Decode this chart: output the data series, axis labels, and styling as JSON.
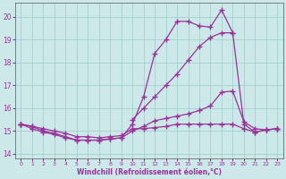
{
  "x": [
    0,
    1,
    2,
    3,
    4,
    5,
    6,
    7,
    8,
    9,
    10,
    11,
    12,
    13,
    14,
    15,
    16,
    17,
    18,
    19,
    20,
    21,
    22,
    23
  ],
  "line1": [
    15.3,
    15.2,
    15.1,
    15.0,
    14.9,
    14.75,
    14.75,
    14.7,
    14.75,
    14.8,
    15.1,
    15.1,
    15.15,
    15.2,
    15.3,
    15.3,
    15.3,
    15.3,
    15.3,
    15.3,
    15.1,
    14.95,
    15.05,
    15.1
  ],
  "line2": [
    15.3,
    15.2,
    15.0,
    14.9,
    14.75,
    14.6,
    14.6,
    14.6,
    14.65,
    14.7,
    15.3,
    16.5,
    18.4,
    19.0,
    19.8,
    19.8,
    19.6,
    19.55,
    20.3,
    19.3,
    15.3,
    14.95,
    15.05,
    15.1
  ],
  "line3": [
    15.3,
    15.1,
    14.95,
    14.85,
    14.7,
    14.6,
    14.6,
    14.6,
    14.65,
    14.7,
    15.0,
    15.2,
    15.45,
    15.55,
    15.65,
    15.75,
    15.9,
    16.1,
    16.7,
    16.75,
    15.4,
    15.1,
    15.05,
    15.1
  ],
  "line4": [
    15.3,
    null,
    null,
    null,
    null,
    null,
    null,
    null,
    null,
    null,
    15.5,
    16.0,
    16.5,
    17.0,
    17.5,
    18.1,
    18.7,
    19.1,
    19.3,
    19.3,
    null,
    null,
    null,
    null
  ],
  "color": "#993399",
  "bg_color": "#cce8e8",
  "grid_color": "#99cccc",
  "xlabel": "Windchill (Refroidissement éolien,°C)",
  "xlim": [
    -0.5,
    23.5
  ],
  "ylim": [
    13.8,
    20.6
  ],
  "yticks": [
    14,
    15,
    16,
    17,
    18,
    19,
    20
  ],
  "xticks": [
    0,
    1,
    2,
    3,
    4,
    5,
    6,
    7,
    8,
    9,
    10,
    11,
    12,
    13,
    14,
    15,
    16,
    17,
    18,
    19,
    20,
    21,
    22,
    23
  ]
}
